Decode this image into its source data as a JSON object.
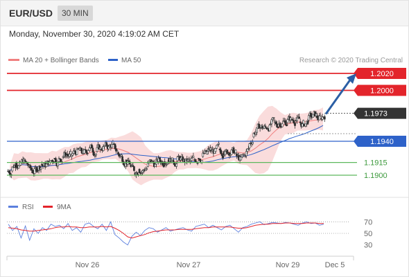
{
  "header": {
    "symbol": "EUR/USD",
    "timeframe": "30 MIN",
    "datetime": "Monday, November 30, 2020 4:19:02 AM CET"
  },
  "legend": {
    "ma20_label": "MA 20 + Bollinger Bands",
    "ma50_label": "MA 50",
    "credit": "Research © 2020 Trading Central",
    "rsi_label": "RSI",
    "ma9_label": "9MA"
  },
  "colors": {
    "resistance": "#e3242b",
    "support_blue": "#2e62c9",
    "support_green": "#5cb85c",
    "last_price": "#333333",
    "candle": "#2f2f2f",
    "bollinger_fill": "#f8caca",
    "ma20": "#f08080",
    "ma50": "#2e62c9",
    "rsi": "#5b7fde",
    "rsi_ma": "#e3242b",
    "arrow": "#2b5fa5"
  },
  "chart_data": [
    {
      "type": "candlestick",
      "title": "EUR/USD 30 MIN",
      "x_ticks": [
        "Nov 26",
        "Nov 27",
        "Nov 29",
        "Dec 5"
      ],
      "levels": [
        {
          "label": "1.2020",
          "value": 1.202,
          "kind": "resistance"
        },
        {
          "label": "1.2000",
          "value": 1.2,
          "kind": "resistance"
        },
        {
          "label": "1.1973",
          "value": 1.1973,
          "kind": "last"
        },
        {
          "label": "1.1940",
          "value": 1.194,
          "kind": "pivot"
        },
        {
          "label": "1.1915",
          "value": 1.1915,
          "kind": "support"
        },
        {
          "label": "1.1900",
          "value": 1.19,
          "kind": "support"
        }
      ],
      "ylim": [
        1.188,
        1.203
      ],
      "last_price": 1.1973,
      "target": 1.202,
      "close_path": [
        1.1905,
        1.1915,
        1.1912,
        1.1918,
        1.191,
        1.1903,
        1.1906,
        1.1913,
        1.191,
        1.1915,
        1.192,
        1.1916,
        1.1921,
        1.1925,
        1.1922,
        1.1928,
        1.1929,
        1.1926,
        1.193,
        1.1932,
        1.1928,
        1.1931,
        1.1935,
        1.1933,
        1.1937,
        1.1927,
        1.1922,
        1.1918,
        1.1912,
        1.1903,
        1.1907,
        1.1905,
        1.191,
        1.1915,
        1.1913,
        1.1918,
        1.1916,
        1.192,
        1.1918,
        1.1917,
        1.1919,
        1.1915,
        1.1916,
        1.1918,
        1.192,
        1.1922,
        1.1925,
        1.193,
        1.1928,
        1.1931,
        1.1928,
        1.1926,
        1.193,
        1.1925,
        1.1918,
        1.1923,
        1.1932,
        1.1945,
        1.1955,
        1.1958,
        1.1956,
        1.196,
        1.1962,
        1.196,
        1.1963,
        1.1962,
        1.1966,
        1.1965,
        1.1963,
        1.196,
        1.1965,
        1.1968,
        1.197,
        1.1967,
        1.1973
      ]
    },
    {
      "type": "line",
      "title": "RSI",
      "series": [
        {
          "name": "RSI"
        },
        {
          "name": "9MA"
        }
      ],
      "y_ticks": [
        70,
        50,
        30
      ],
      "ylim": [
        20,
        80
      ],
      "rsi": [
        66,
        55,
        62,
        42,
        63,
        38,
        58,
        50,
        60,
        55,
        66,
        62,
        64,
        58,
        67,
        55,
        60,
        52,
        66,
        68,
        62,
        58,
        66,
        55,
        70,
        48,
        42,
        35,
        30,
        45,
        52,
        46,
        55,
        60,
        58,
        52,
        56,
        60,
        54,
        56,
        58,
        60,
        56,
        54,
        62,
        64,
        66,
        60,
        64,
        60,
        56,
        62,
        64,
        58,
        52,
        60,
        62,
        66,
        68,
        70,
        65,
        67,
        69,
        68,
        67,
        69,
        68,
        66,
        64,
        68,
        70,
        67,
        68,
        64,
        66
      ],
      "rsi_ma": [
        60,
        59,
        58,
        56,
        55,
        54,
        54,
        55,
        56,
        57,
        58,
        60,
        61,
        61,
        62,
        61,
        61,
        60,
        60,
        61,
        61,
        61,
        62,
        61,
        62,
        59,
        55,
        50,
        44,
        42,
        44,
        46,
        48,
        51,
        53,
        54,
        55,
        56,
        56,
        56,
        57,
        57,
        57,
        57,
        58,
        59,
        60,
        60,
        61,
        61,
        61,
        61,
        61,
        60,
        59,
        59,
        60,
        62,
        64,
        65,
        66,
        66,
        67,
        67,
        67,
        68,
        68,
        67,
        67,
        67,
        68,
        68,
        68,
        67,
        67
      ]
    }
  ]
}
